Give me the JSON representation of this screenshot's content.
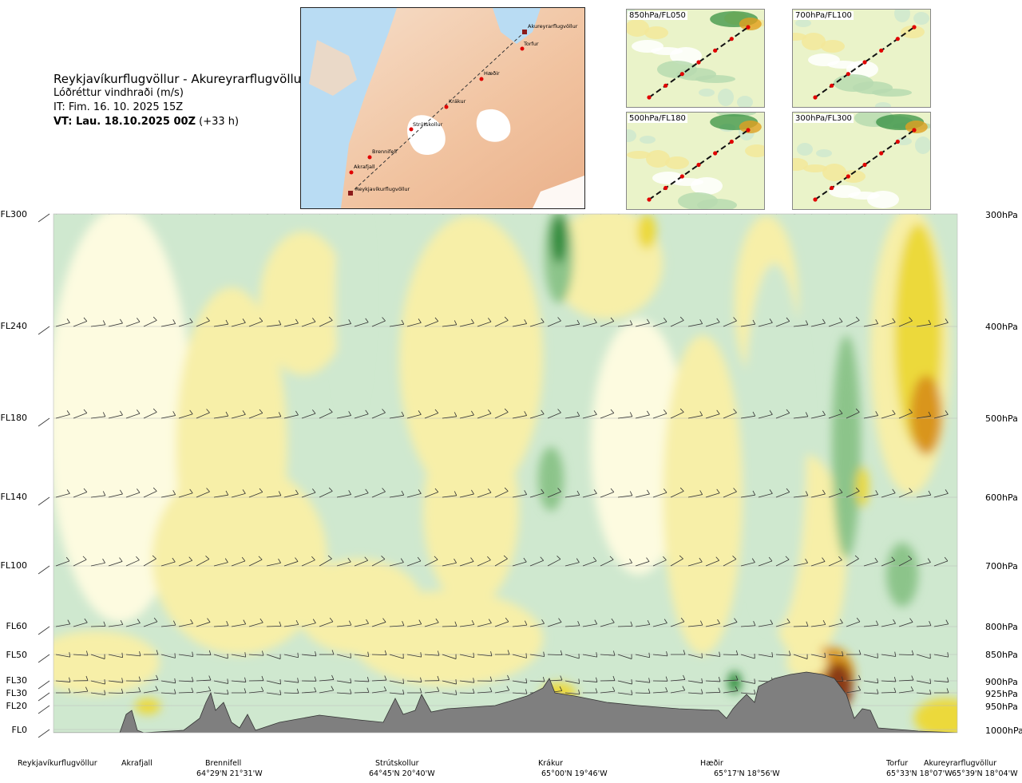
{
  "title": {
    "route": "Reykjavíkurflugvöllur - Akureyrarflugvöllur",
    "variable": "Lóðréttur vindhraði (m/s)",
    "issue_time": "IT: Fim. 16. 10. 2025 15Z",
    "valid_time": "VT: Lau. 18.10.2025 00Z",
    "lead": "(+33 h)"
  },
  "map": {
    "points": [
      "Reykjavíkurflugvöllur",
      "Akrafjall",
      "Brennifell",
      "Strútskollur",
      "Krákur",
      "Hæðir",
      "Torfur",
      "Akureyrarflugvöllur"
    ]
  },
  "mini_maps": [
    {
      "label": "850hPa/FL050"
    },
    {
      "label": "700hPa/FL100"
    },
    {
      "label": "500hPa/FL180"
    },
    {
      "label": "300hPa/FL300"
    }
  ],
  "chart_data": {
    "type": "heatmap",
    "title": "Lóðréttur vindhraði (m/s)",
    "y_left_levels": [
      "FL300",
      "FL240",
      "FL180",
      "FL140",
      "FL100",
      "FL60",
      "FL50",
      "FL30",
      "FL30",
      "FL20",
      "FL0"
    ],
    "y_right_levels": [
      "300hPa",
      "400hPa",
      "500hPa",
      "600hPa",
      "700hPa",
      "800hPa",
      "850hPa",
      "900hPa",
      "925hPa",
      "950hPa",
      "1000hPa"
    ],
    "x_points": [
      {
        "name": "Reykjavíkurflugvöllur",
        "coord": ""
      },
      {
        "name": "Akrafjall",
        "coord": ""
      },
      {
        "name": "Brennifell",
        "coord": "64°29'N 21°31'W"
      },
      {
        "name": "Strútskollur",
        "coord": "64°45'N 20°40'W"
      },
      {
        "name": "Krákur",
        "coord": "65°00'N 19°46'W"
      },
      {
        "name": "Hæðir",
        "coord": "65°17'N 18°56'W"
      },
      {
        "name": "Torfur",
        "coord": "65°33'N 18°07'W"
      },
      {
        "name": "Akureyrarflugvöllur",
        "coord": "65°39'N 18°04'W"
      }
    ],
    "colors": {
      "strong_down": "#2e8b3a",
      "down": "#8cc48a",
      "weak_down": "#cfe8cf",
      "near_zero": "#fdfbe0",
      "weak_up": "#f7efa8",
      "up": "#ecd93a",
      "strong_up": "#d9951c",
      "very_strong_up": "#8a3a12",
      "terrain": "#7f7f7f"
    }
  }
}
